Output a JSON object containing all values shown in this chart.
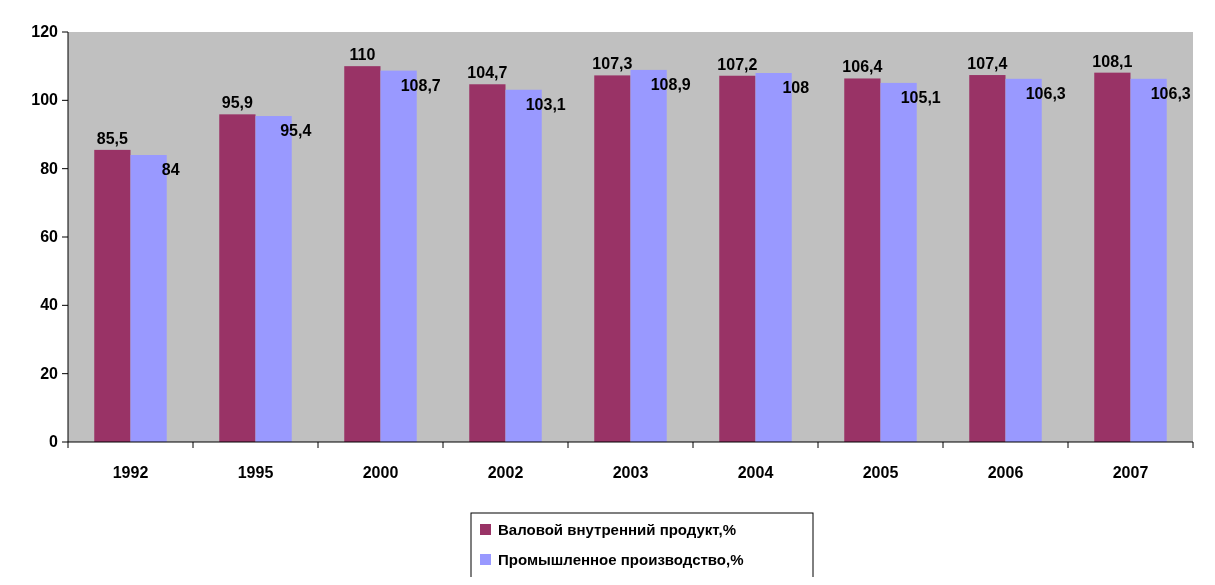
{
  "chart_data": {
    "type": "bar",
    "categories": [
      "1992",
      "1995",
      "2000",
      "2002",
      "2003",
      "2004",
      "2005",
      "2006",
      "2007"
    ],
    "series": [
      {
        "name": "Валовой внутренний продукт,%",
        "color": "#993366",
        "values": [
          85.5,
          95.9,
          110,
          104.7,
          107.3,
          107.2,
          106.4,
          107.4,
          108.1
        ],
        "value_labels": [
          "85,5",
          "95,9",
          "110",
          "104,7",
          "107,3",
          "107,2",
          "106,4",
          "107,4",
          "108,1"
        ]
      },
      {
        "name": "Промышленное производство,%",
        "color": "#9999ff",
        "values": [
          84,
          95.4,
          108.7,
          103.1,
          108.9,
          108,
          105.1,
          106.3,
          106.3
        ],
        "value_labels": [
          "84",
          "95,4",
          "108,7",
          "103,1",
          "108,9",
          "108",
          "105,1",
          "106,3",
          "106,3"
        ]
      }
    ],
    "ylim": [
      0,
      120
    ],
    "yticks": [
      0,
      20,
      40,
      60,
      80,
      100,
      120
    ],
    "grid": false,
    "legend": "bottom"
  }
}
